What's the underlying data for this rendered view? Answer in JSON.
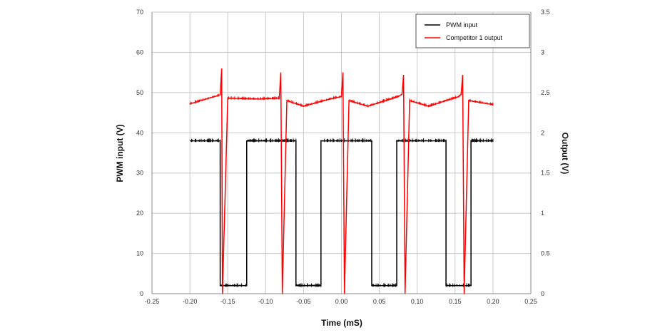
{
  "chart_data": {
    "type": "line",
    "title": "",
    "xlabel": "Time (mS)",
    "ylabel": "PWM input (V)",
    "y2label": "Output (V)",
    "xlim": [
      -0.25,
      0.25
    ],
    "ylim": [
      0,
      70
    ],
    "y2lim": [
      0,
      3.5
    ],
    "x_ticks": [
      "-0.25",
      "-0.20",
      "-0.15",
      "-0.10",
      "-0.05",
      "0.00",
      "0.05",
      "0.10",
      "0.15",
      "0.20",
      "0.25"
    ],
    "y_ticks": [
      "0",
      "10",
      "20",
      "30",
      "40",
      "50",
      "60",
      "70"
    ],
    "y2_ticks": [
      "0",
      "0.5",
      "1",
      "1.5",
      "2",
      "2.5",
      "3",
      "3.5"
    ],
    "grid": true,
    "legend_position": "top-right",
    "series": [
      {
        "name": "PWM input",
        "axis": "left",
        "color": "#000000",
        "points": [
          [
            -0.2,
            38
          ],
          [
            -0.16,
            38
          ],
          [
            -0.16,
            2
          ],
          [
            -0.125,
            2
          ],
          [
            -0.125,
            38
          ],
          [
            -0.06,
            38
          ],
          [
            -0.06,
            2
          ],
          [
            -0.027,
            2
          ],
          [
            -0.027,
            38
          ],
          [
            0.04,
            38
          ],
          [
            0.04,
            2
          ],
          [
            0.073,
            2
          ],
          [
            0.073,
            38
          ],
          [
            0.138,
            38
          ],
          [
            0.138,
            2
          ],
          [
            0.171,
            2
          ],
          [
            0.171,
            38
          ],
          [
            0.2,
            38
          ]
        ]
      },
      {
        "name": "Competitor 1 output",
        "axis": "right",
        "color": "#ff0000",
        "points": [
          [
            -0.2,
            2.36
          ],
          [
            -0.16,
            2.47
          ],
          [
            -0.158,
            2.8
          ],
          [
            -0.157,
            0
          ],
          [
            -0.15,
            2.43
          ],
          [
            -0.11,
            2.42
          ],
          [
            -0.082,
            2.43
          ],
          [
            -0.08,
            2.75
          ],
          [
            -0.078,
            0
          ],
          [
            -0.072,
            2.4
          ],
          [
            -0.05,
            2.33
          ],
          [
            -0.015,
            2.42
          ],
          [
            0.0,
            2.45
          ],
          [
            0.002,
            2.75
          ],
          [
            0.004,
            0
          ],
          [
            0.01,
            2.4
          ],
          [
            0.035,
            2.33
          ],
          [
            0.075,
            2.45
          ],
          [
            0.08,
            2.48
          ],
          [
            0.082,
            2.72
          ],
          [
            0.084,
            0
          ],
          [
            0.09,
            2.4
          ],
          [
            0.115,
            2.33
          ],
          [
            0.155,
            2.45
          ],
          [
            0.158,
            2.48
          ],
          [
            0.16,
            2.72
          ],
          [
            0.162,
            0
          ],
          [
            0.168,
            2.4
          ],
          [
            0.2,
            2.35
          ]
        ]
      }
    ]
  }
}
